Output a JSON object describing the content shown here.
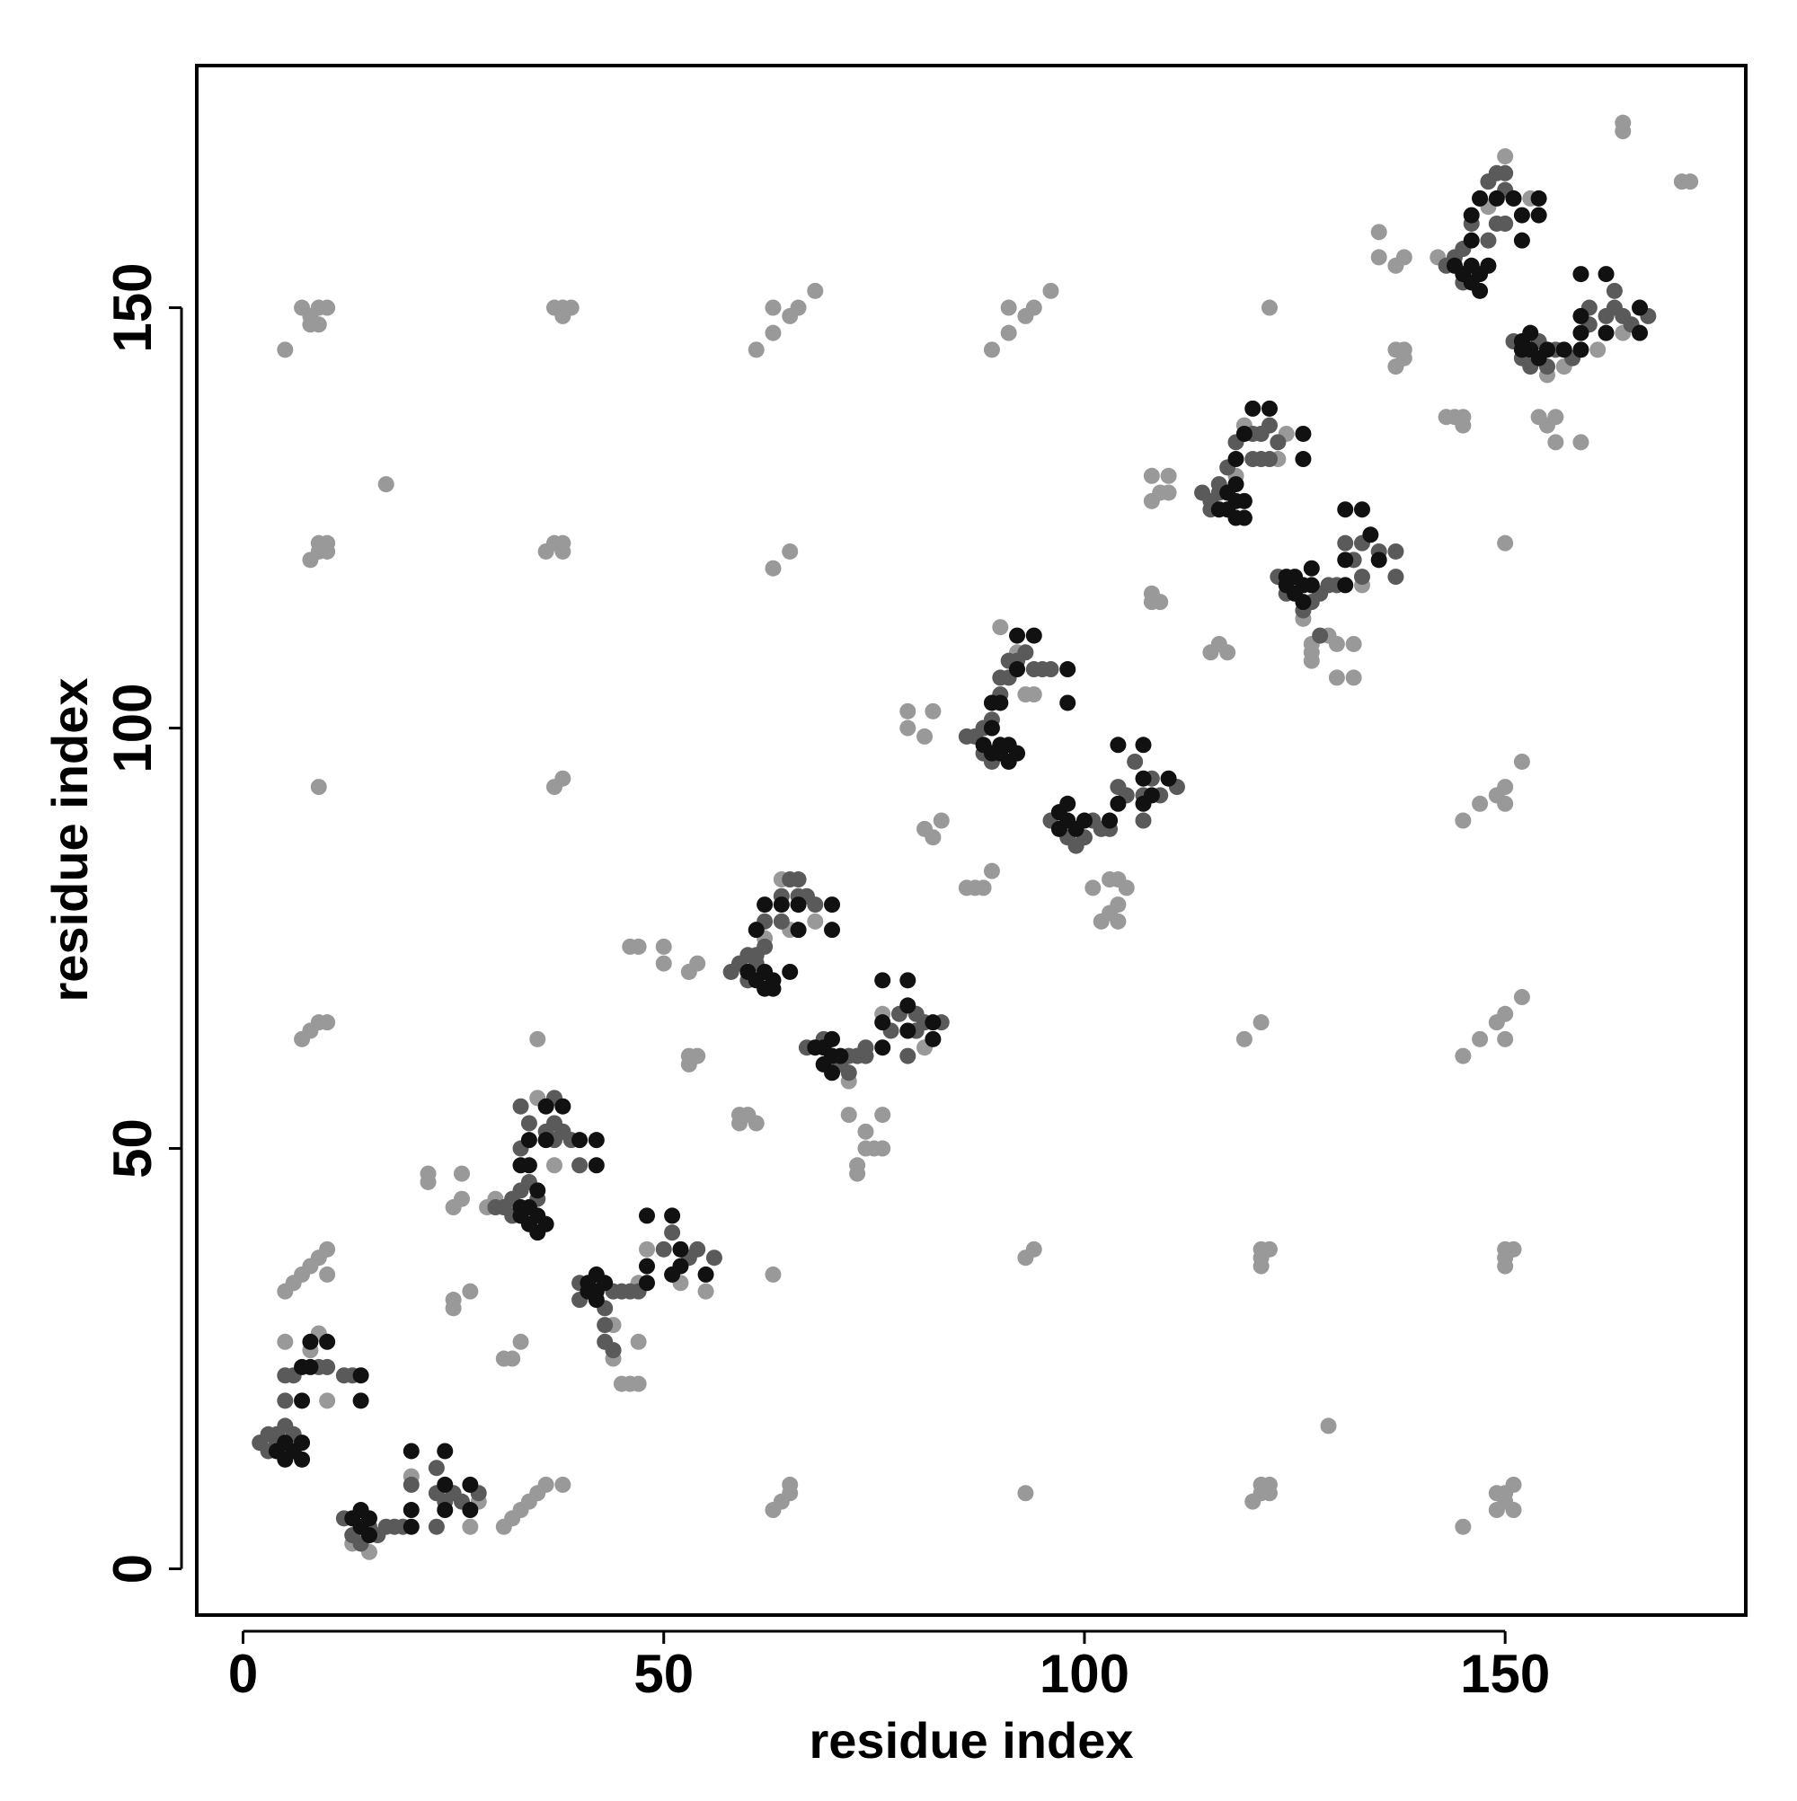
{
  "chart_data": {
    "type": "scatter",
    "xlabel": "residue index",
    "ylabel": "residue index",
    "xlim": [
      -5.5,
      178.6
    ],
    "ylim": [
      -5.5,
      178.8
    ],
    "xticks": [
      0,
      50,
      100,
      150
    ],
    "yticks": [
      0,
      50,
      100,
      150
    ],
    "grid": false,
    "series": [
      {
        "color": "#999999",
        "x": [
          5,
          7,
          8,
          9,
          9,
          10,
          8,
          38,
          37,
          38,
          39,
          61,
          63,
          63,
          65,
          66,
          68,
          89,
          91,
          91,
          93,
          94,
          96,
          17,
          8,
          9,
          10,
          9,
          10,
          36,
          37,
          38,
          38,
          63,
          65,
          9,
          37,
          38,
          7,
          8,
          9,
          10,
          35,
          5,
          6,
          7,
          8,
          9,
          10,
          10,
          25,
          25,
          27,
          31,
          32,
          33,
          31,
          32,
          33,
          34,
          35,
          36,
          38,
          63,
          64,
          65,
          65,
          93,
          120,
          121,
          122,
          121,
          122,
          129,
          145,
          149,
          150,
          150,
          151,
          151,
          149,
          93,
          94,
          121,
          121,
          122,
          121,
          150,
          150,
          151,
          150,
          63,
          119,
          121,
          145,
          147,
          149,
          150,
          150,
          152,
          145,
          147,
          149,
          150,
          150,
          152,
          150,
          122,
          135,
          135,
          137,
          138,
          137,
          138,
          137,
          138,
          143,
          144,
          145,
          145,
          154,
          155,
          156,
          156,
          159,
          164,
          164,
          171,
          172,
          108,
          109,
          108,
          110,
          110,
          108,
          109,
          108,
          115,
          117,
          116,
          79,
          79,
          82,
          81,
          81,
          82,
          83,
          86,
          87,
          88,
          89,
          46,
          47,
          50,
          50,
          53,
          54,
          53,
          53,
          54,
          59,
          60,
          61,
          59,
          72,
          74,
          74,
          75,
          73,
          73,
          76,
          76,
          22,
          22,
          25,
          26,
          26,
          44,
          44,
          45,
          46,
          47,
          47,
          103,
          104,
          103,
          104,
          127,
          127,
          130,
          132,
          132,
          130,
          5,
          9,
          10,
          8,
          13,
          15,
          20,
          27,
          28,
          35,
          38,
          37,
          29,
          30,
          44,
          47,
          48,
          52,
          55,
          64,
          65,
          66,
          68,
          62,
          72,
          73,
          76,
          80,
          81,
          90,
          93,
          94,
          92,
          99,
          101,
          102,
          104,
          105,
          118,
          119,
          124,
          123,
          126,
          127,
          129,
          133,
          142,
          148,
          150,
          153,
          155,
          157,
          164,
          161
        ],
        "y": [
          145,
          150,
          149,
          148,
          150,
          150,
          148,
          149,
          150,
          150,
          150,
          145,
          147,
          150,
          149,
          150,
          152,
          145,
          147,
          150,
          149,
          150,
          152,
          129,
          120,
          121,
          122,
          122,
          121,
          121,
          122,
          122,
          121,
          119,
          121,
          93,
          93,
          94,
          63,
          64,
          65,
          65,
          63,
          33,
          34,
          35,
          36,
          37,
          38,
          35,
          31,
          32,
          33,
          25,
          25,
          27,
          5,
          6,
          7,
          8,
          9,
          10,
          10,
          7,
          8,
          9,
          10,
          9,
          8,
          9,
          10,
          10,
          9,
          17,
          5,
          7,
          8,
          9,
          10,
          7,
          9,
          37,
          38,
          36,
          37,
          38,
          38,
          36,
          37,
          38,
          38,
          35,
          63,
          65,
          61,
          63,
          65,
          66,
          63,
          68,
          89,
          91,
          92,
          93,
          91,
          96,
          122,
          150,
          159,
          156,
          155,
          156,
          145,
          145,
          143,
          144,
          137,
          137,
          137,
          136,
          137,
          136,
          137,
          134,
          134,
          172,
          171,
          165,
          165,
          130,
          128,
          127,
          130,
          128,
          116,
          115,
          115,
          109,
          109,
          110,
          102,
          100,
          102,
          99,
          88,
          87,
          89,
          81,
          81,
          81,
          83,
          74,
          74,
          74,
          72,
          71,
          72,
          60,
          61,
          61,
          54,
          54,
          53,
          53,
          54,
          52,
          50,
          50,
          48,
          47,
          54,
          50,
          46,
          47,
          43,
          44,
          47,
          26,
          25,
          22,
          22,
          22,
          27,
          82,
          79,
          78,
          82,
          110,
          108,
          106,
          106,
          110,
          110,
          27,
          28,
          20,
          26,
          3,
          2,
          11,
          5,
          8,
          56,
          52,
          48,
          43,
          44,
          29,
          34,
          38,
          34,
          33,
          82,
          76,
          76,
          77,
          75,
          58,
          61,
          66,
          64,
          62,
          112,
          104,
          104,
          109,
          86,
          81,
          77,
          77,
          81,
          130,
          136,
          135,
          132,
          113,
          109,
          111,
          117,
          156,
          162,
          168,
          163,
          142,
          143,
          147,
          145
        ]
      },
      {
        "color": "#5a5a5a",
        "x": [
          2,
          3,
          3,
          4,
          5,
          6,
          5,
          5,
          6,
          9,
          10,
          12,
          13,
          5,
          4,
          6,
          12,
          13,
          14,
          15,
          16,
          17,
          18,
          19,
          20,
          23,
          23,
          24,
          25,
          26,
          28,
          23,
          30,
          31,
          32,
          32,
          33,
          34,
          35,
          33,
          34,
          36,
          37,
          37,
          38,
          39,
          40,
          37,
          33,
          40,
          40,
          43,
          44,
          45,
          46,
          47,
          50,
          51,
          53,
          54,
          56,
          44,
          43,
          43,
          58,
          59,
          60,
          60,
          61,
          61,
          62,
          62,
          64,
          65,
          66,
          66,
          67,
          68,
          64,
          67,
          69,
          71,
          72,
          73,
          74,
          72,
          77,
          78,
          80,
          81,
          83,
          80,
          79,
          74,
          86,
          87,
          88,
          88,
          89,
          90,
          91,
          92,
          93,
          94,
          95,
          96,
          90,
          91,
          89,
          96,
          98,
          99,
          100,
          101,
          102,
          103,
          104,
          105,
          106,
          107,
          108,
          109,
          111,
          107,
          114,
          115,
          116,
          116,
          117,
          118,
          120,
          121,
          122,
          123,
          121,
          122,
          120,
          115,
          123,
          124,
          126,
          127,
          128,
          129,
          130,
          131,
          132,
          133,
          133,
          135,
          137,
          137,
          128,
          143,
          144,
          145,
          145,
          146,
          147,
          148,
          149,
          150,
          150,
          151,
          149,
          150,
          148,
          151,
          152,
          153,
          154,
          155,
          156,
          158,
          160,
          160,
          162,
          163,
          164,
          165,
          167,
          163
        ],
        "y": [
          15,
          14,
          16,
          16,
          17,
          14,
          20,
          23,
          23,
          24,
          24,
          23,
          23,
          14,
          15,
          16,
          6,
          4,
          3,
          5,
          4,
          5,
          5,
          5,
          10,
          9,
          12,
          8,
          9,
          8,
          9,
          5,
          43,
          43,
          42,
          44,
          45,
          46,
          44,
          50,
          53,
          52,
          53,
          51,
          52,
          51,
          48,
          56,
          55,
          34,
          32,
          31,
          33,
          33,
          33,
          33,
          38,
          40,
          37,
          38,
          37,
          26,
          29,
          27,
          71,
          72,
          70,
          73,
          73,
          72,
          74,
          77,
          80,
          82,
          82,
          80,
          80,
          79,
          77,
          62,
          63,
          60,
          61,
          61,
          61,
          59,
          64,
          66,
          66,
          65,
          65,
          64,
          61,
          62,
          99,
          99,
          97,
          100,
          101,
          104,
          106,
          108,
          109,
          107,
          107,
          107,
          106,
          108,
          96,
          89,
          87,
          86,
          87,
          89,
          88,
          88,
          93,
          92,
          96,
          92,
          94,
          92,
          93,
          89,
          128,
          127,
          128,
          129,
          131,
          134,
          135,
          135,
          136,
          134,
          132,
          132,
          132,
          126,
          118,
          116,
          114,
          115,
          116,
          117,
          117,
          122,
          120,
          122,
          118,
          121,
          121,
          118,
          111,
          155,
          156,
          153,
          157,
          160,
          163,
          165,
          166,
          166,
          164,
          163,
          160,
          160,
          158,
          146,
          144,
          143,
          146,
          143,
          145,
          144,
          148,
          150,
          149,
          150,
          149,
          148,
          149,
          152
        ]
      },
      {
        "color": "#111111",
        "x": [
          7,
          7,
          8,
          8,
          10,
          14,
          14,
          5,
          7,
          6,
          4,
          5,
          7,
          13,
          14,
          14,
          15,
          15,
          20,
          20,
          20,
          24,
          24,
          27,
          27,
          24,
          33,
          34,
          35,
          34,
          35,
          36,
          33,
          34,
          34,
          36,
          36,
          38,
          40,
          42,
          42,
          35,
          33,
          41,
          42,
          42,
          43,
          41,
          42,
          48,
          48,
          48,
          51,
          52,
          52,
          51,
          55,
          60,
          61,
          62,
          63,
          62,
          63,
          61,
          62,
          64,
          66,
          66,
          70,
          70,
          65,
          68,
          69,
          70,
          71,
          69,
          70,
          70,
          76,
          76,
          76,
          79,
          79,
          82,
          82,
          79,
          88,
          89,
          90,
          91,
          91,
          92,
          89,
          89,
          90,
          92,
          92,
          94,
          98,
          98,
          90,
          97,
          98,
          98,
          99,
          100,
          97,
          103,
          104,
          104,
          107,
          107,
          107,
          110,
          108,
          116,
          117,
          118,
          119,
          117,
          118,
          118,
          118,
          119,
          120,
          122,
          126,
          126,
          119,
          124,
          125,
          125,
          126,
          126,
          127,
          124,
          133,
          131,
          131,
          131,
          135,
          134,
          127,
          144,
          145,
          146,
          147,
          147,
          148,
          146,
          146,
          146,
          147,
          149,
          151,
          152,
          152,
          154,
          154,
          152,
          153,
          153,
          154,
          155,
          152,
          157,
          159,
          159,
          159,
          159,
          162,
          162,
          166,
          166
        ],
        "y": [
          20,
          24,
          24,
          27,
          27,
          20,
          23,
          13,
          13,
          14,
          14,
          15,
          15,
          6,
          5,
          7,
          4,
          6,
          5,
          7,
          14,
          14,
          7,
          7,
          10,
          10,
          42,
          41,
          40,
          43,
          42,
          41,
          48,
          48,
          51,
          51,
          55,
          55,
          51,
          51,
          48,
          45,
          43,
          34,
          33,
          35,
          34,
          33,
          32,
          34,
          36,
          42,
          42,
          36,
          38,
          35,
          35,
          71,
          70,
          69,
          69,
          71,
          70,
          76,
          79,
          79,
          79,
          76,
          79,
          76,
          71,
          62,
          62,
          61,
          61,
          60,
          59,
          63,
          62,
          65,
          70,
          70,
          67,
          63,
          65,
          64,
          98,
          97,
          97,
          96,
          98,
          97,
          100,
          103,
          103,
          107,
          111,
          111,
          107,
          103,
          98,
          90,
          89,
          91,
          88,
          89,
          88,
          89,
          91,
          98,
          98,
          91,
          94,
          94,
          92,
          126,
          126,
          125,
          125,
          128,
          127,
          129,
          132,
          135,
          138,
          138,
          135,
          132,
          127,
          117,
          116,
          118,
          115,
          117,
          119,
          118,
          126,
          126,
          120,
          117,
          120,
          123,
          117,
          155,
          154,
          153,
          152,
          154,
          155,
          155,
          158,
          161,
          163,
          163,
          163,
          161,
          158,
          163,
          161,
          146,
          145,
          147,
          144,
          145,
          145,
          145,
          145,
          147,
          149,
          154,
          154,
          147,
          147,
          150
        ]
      }
    ]
  }
}
